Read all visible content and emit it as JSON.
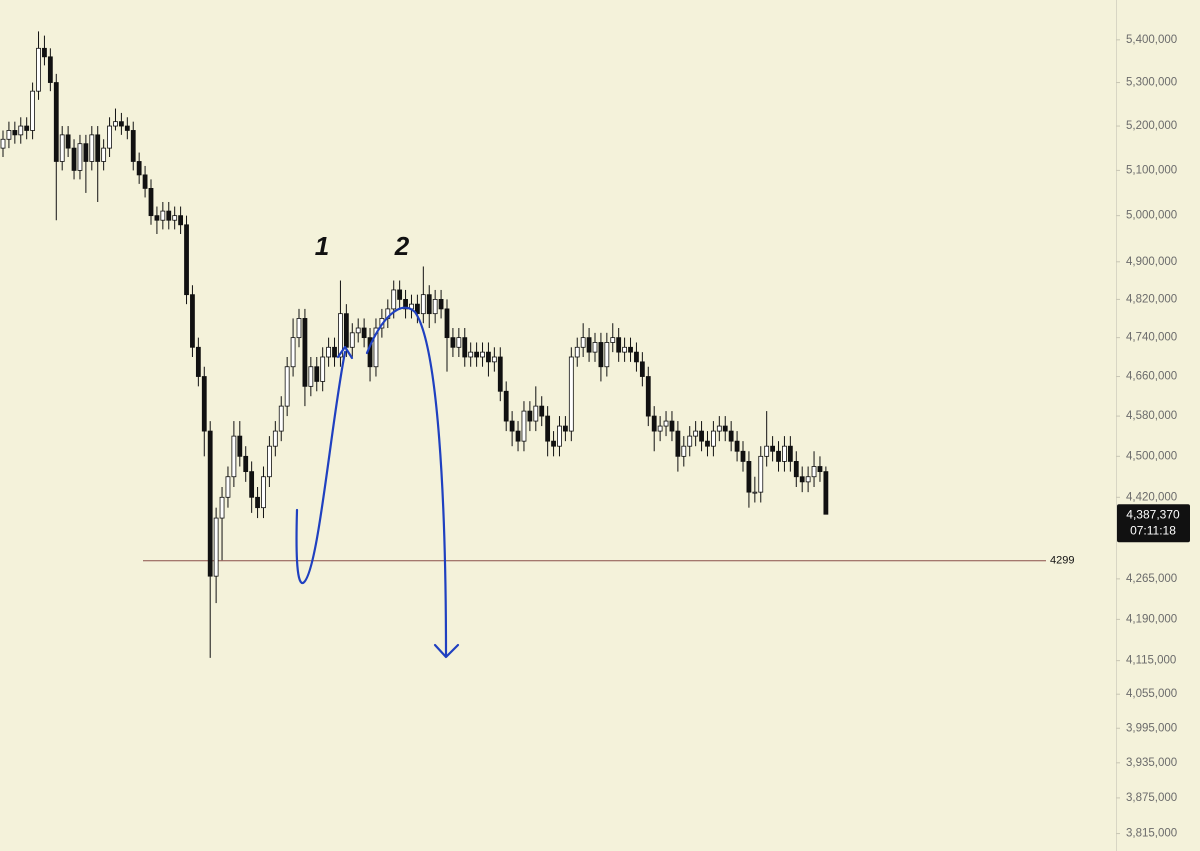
{
  "chart_data": {
    "type": "candlestick",
    "log_scale": true,
    "up_color": "#ffffff",
    "down_color": "#111111",
    "outline_color": "#111111",
    "open": [
      5150000,
      5170000,
      5190000,
      5180000,
      5200000,
      5190000,
      5280000,
      5380000,
      5360000,
      5300000,
      5120000,
      5180000,
      5150000,
      5100000,
      5160000,
      5120000,
      5180000,
      5120000,
      5150000,
      5200000,
      5210000,
      5200000,
      5190000,
      5120000,
      5090000,
      5060000,
      5000000,
      4990000,
      5010000,
      4990000,
      5000000,
      4980000,
      4830000,
      4720000,
      4660000,
      4550000,
      4270000,
      4380000,
      4420000,
      4460000,
      4540000,
      4500000,
      4470000,
      4420000,
      4400000,
      4460000,
      4520000,
      4550000,
      4600000,
      4680000,
      4740000,
      4780000,
      4640000,
      4680000,
      4650000,
      4700000,
      4720000,
      4700000,
      4790000,
      4720000,
      4750000,
      4760000,
      4740000,
      4680000,
      4760000,
      4780000,
      4800000,
      4840000,
      4820000,
      4800000,
      4810000,
      4790000,
      4830000,
      4790000,
      4820000,
      4800000,
      4740000,
      4720000,
      4740000,
      4700000,
      4710000,
      4700000,
      4710000,
      4690000,
      4700000,
      4630000,
      4570000,
      4550000,
      4530000,
      4590000,
      4570000,
      4600000,
      4580000,
      4530000,
      4520000,
      4560000,
      4550000,
      4700000,
      4720000,
      4740000,
      4710000,
      4730000,
      4680000,
      4730000,
      4740000,
      4710000,
      4720000,
      4710000,
      4690000,
      4660000,
      4580000,
      4550000,
      4560000,
      4570000,
      4550000,
      4500000,
      4520000,
      4540000,
      4550000,
      4530000,
      4520000,
      4550000,
      4560000,
      4550000,
      4530000,
      4510000,
      4490000,
      4430000,
      4430000,
      4500000,
      4520000,
      4510000,
      4490000,
      4520000,
      4490000,
      4460000,
      4450000,
      4460000,
      4480000,
      4470000
    ],
    "high": [
      5190000,
      5210000,
      5210000,
      5220000,
      5220000,
      5300000,
      5420000,
      5410000,
      5380000,
      5320000,
      5200000,
      5200000,
      5170000,
      5180000,
      5180000,
      5200000,
      5200000,
      5170000,
      5220000,
      5240000,
      5230000,
      5220000,
      5210000,
      5140000,
      5110000,
      5080000,
      5020000,
      5030000,
      5030000,
      5020000,
      5020000,
      5000000,
      4850000,
      4740000,
      4680000,
      4570000,
      4400000,
      4440000,
      4480000,
      4570000,
      4570000,
      4520000,
      4490000,
      4440000,
      4480000,
      4540000,
      4570000,
      4620000,
      4700000,
      4780000,
      4800000,
      4800000,
      4700000,
      4700000,
      4720000,
      4740000,
      4740000,
      4860000,
      4810000,
      4770000,
      4780000,
      4780000,
      4760000,
      4780000,
      4800000,
      4820000,
      4860000,
      4860000,
      4840000,
      4830000,
      4830000,
      4890000,
      4850000,
      4840000,
      4840000,
      4820000,
      4760000,
      4760000,
      4760000,
      4730000,
      4730000,
      4730000,
      4730000,
      4720000,
      4720000,
      4650000,
      4590000,
      4570000,
      4610000,
      4610000,
      4640000,
      4620000,
      4600000,
      4550000,
      4580000,
      4580000,
      4720000,
      4740000,
      4770000,
      4760000,
      4750000,
      4750000,
      4750000,
      4770000,
      4760000,
      4740000,
      4740000,
      4730000,
      4710000,
      4680000,
      4600000,
      4580000,
      4590000,
      4590000,
      4570000,
      4540000,
      4560000,
      4570000,
      4570000,
      4550000,
      4570000,
      4580000,
      4580000,
      4570000,
      4550000,
      4530000,
      4510000,
      4460000,
      4520000,
      4590000,
      4540000,
      4530000,
      4540000,
      4540000,
      4510000,
      4480000,
      4480000,
      4510000,
      4500000,
      4480000
    ],
    "low": [
      5130000,
      5150000,
      5160000,
      5160000,
      5170000,
      5170000,
      5260000,
      5340000,
      5280000,
      4990000,
      5100000,
      5130000,
      5080000,
      5080000,
      5050000,
      5100000,
      5030000,
      5100000,
      5130000,
      5190000,
      5180000,
      5170000,
      5100000,
      5070000,
      5040000,
      4980000,
      4960000,
      4970000,
      4970000,
      4970000,
      4960000,
      4810000,
      4700000,
      4640000,
      4500000,
      4120000,
      4220000,
      4300000,
      4400000,
      4440000,
      4480000,
      4450000,
      4390000,
      4380000,
      4380000,
      4440000,
      4500000,
      4530000,
      4580000,
      4660000,
      4720000,
      4600000,
      4620000,
      4630000,
      4630000,
      4680000,
      4680000,
      4680000,
      4700000,
      4700000,
      4730000,
      4720000,
      4650000,
      4660000,
      4740000,
      4760000,
      4780000,
      4800000,
      4780000,
      4780000,
      4770000,
      4770000,
      4760000,
      4770000,
      4780000,
      4670000,
      4700000,
      4700000,
      4680000,
      4680000,
      4680000,
      4680000,
      4660000,
      4670000,
      4610000,
      4550000,
      4520000,
      4510000,
      4510000,
      4550000,
      4550000,
      4560000,
      4500000,
      4500000,
      4500000,
      4530000,
      4530000,
      4680000,
      4700000,
      4690000,
      4690000,
      4650000,
      4660000,
      4710000,
      4690000,
      4690000,
      4690000,
      4670000,
      4640000,
      4560000,
      4510000,
      4530000,
      4540000,
      4530000,
      4470000,
      4480000,
      4500000,
      4520000,
      4510000,
      4500000,
      4500000,
      4530000,
      4530000,
      4510000,
      4490000,
      4470000,
      4400000,
      4410000,
      4410000,
      4480000,
      4490000,
      4470000,
      4470000,
      4470000,
      4440000,
      4430000,
      4430000,
      4440000,
      4450000,
      4387370
    ],
    "close": [
      5170000,
      5190000,
      5180000,
      5200000,
      5190000,
      5280000,
      5380000,
      5360000,
      5300000,
      5120000,
      5180000,
      5150000,
      5100000,
      5160000,
      5120000,
      5180000,
      5120000,
      5150000,
      5200000,
      5210000,
      5200000,
      5190000,
      5120000,
      5090000,
      5060000,
      5000000,
      4990000,
      5010000,
      4990000,
      5000000,
      4980000,
      4830000,
      4720000,
      4660000,
      4550000,
      4270000,
      4380000,
      4420000,
      4460000,
      4540000,
      4500000,
      4470000,
      4420000,
      4400000,
      4460000,
      4520000,
      4550000,
      4600000,
      4680000,
      4740000,
      4780000,
      4640000,
      4680000,
      4650000,
      4700000,
      4720000,
      4700000,
      4790000,
      4720000,
      4750000,
      4760000,
      4740000,
      4680000,
      4760000,
      4780000,
      4800000,
      4840000,
      4820000,
      4800000,
      4810000,
      4790000,
      4830000,
      4790000,
      4820000,
      4800000,
      4740000,
      4720000,
      4740000,
      4700000,
      4710000,
      4700000,
      4710000,
      4690000,
      4700000,
      4630000,
      4570000,
      4550000,
      4530000,
      4590000,
      4570000,
      4600000,
      4580000,
      4530000,
      4520000,
      4560000,
      4550000,
      4700000,
      4720000,
      4740000,
      4710000,
      4730000,
      4680000,
      4730000,
      4740000,
      4710000,
      4720000,
      4710000,
      4690000,
      4660000,
      4580000,
      4550000,
      4560000,
      4570000,
      4550000,
      4500000,
      4520000,
      4540000,
      4550000,
      4530000,
      4520000,
      4550000,
      4560000,
      4550000,
      4530000,
      4510000,
      4490000,
      4430000,
      4430000,
      4500000,
      4520000,
      4510000,
      4490000,
      4520000,
      4490000,
      4460000,
      4450000,
      4460000,
      4480000,
      4470000,
      4387370
    ],
    "ylim": [
      3786000,
      5495000
    ],
    "yticks": [
      {
        "value": 5400000,
        "label": "5,400,000"
      },
      {
        "value": 5300000,
        "label": "5,300,000"
      },
      {
        "value": 5200000,
        "label": "5,200,000"
      },
      {
        "value": 5100000,
        "label": "5,100,000"
      },
      {
        "value": 5000000,
        "label": "5,000,000"
      },
      {
        "value": 4900000,
        "label": "4,900,000"
      },
      {
        "value": 4820000,
        "label": "4,820,000"
      },
      {
        "value": 4740000,
        "label": "4,740,000"
      },
      {
        "value": 4660000,
        "label": "4,660,000"
      },
      {
        "value": 4580000,
        "label": "4,580,000"
      },
      {
        "value": 4500000,
        "label": "4,500,000"
      },
      {
        "value": 4420000,
        "label": "4,420,000"
      },
      {
        "value": 4265000,
        "label": "4,265,000"
      },
      {
        "value": 4190000,
        "label": "4,190,000"
      },
      {
        "value": 4115000,
        "label": "4,115,000"
      },
      {
        "value": 4055000,
        "label": "4,055,000"
      },
      {
        "value": 3995000,
        "label": "3,995,000"
      },
      {
        "value": 3935000,
        "label": "3,935,000"
      },
      {
        "value": 3875000,
        "label": "3,875,000"
      },
      {
        "value": 3815000,
        "label": "3,815,000"
      }
    ],
    "horizontal_line": {
      "value": 4299000,
      "label": "4299",
      "color": "#8a4f4a"
    },
    "last_price": {
      "value": 4387370,
      "label": "4,387,370"
    },
    "countdown": "07:11:18",
    "annotations": [
      "1",
      "2"
    ]
  }
}
